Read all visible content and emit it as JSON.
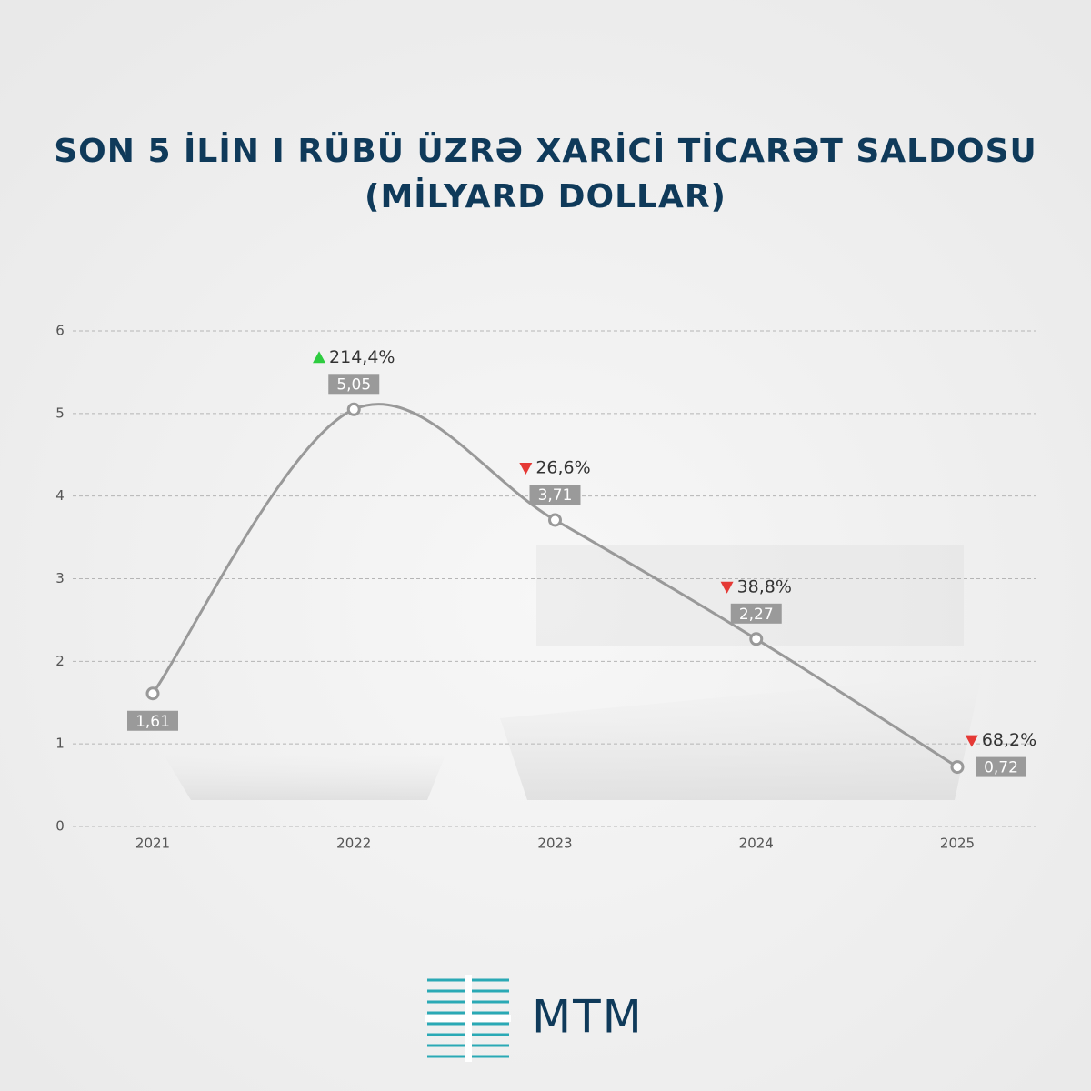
{
  "chart_data": {
    "type": "line",
    "title": [
      "SON 5 İLİN I RÜBÜ ÜZRƏ XARİCİ TİCARƏT SALDOSU",
      "(MİLYARD DOLLAR)"
    ],
    "categories": [
      "2021",
      "2022",
      "2023",
      "2024",
      "2025"
    ],
    "values": [
      1.61,
      5.05,
      3.71,
      2.27,
      0.72
    ],
    "value_labels": [
      "1,61",
      "5,05",
      "3,71",
      "2,27",
      "0,72"
    ],
    "change_labels": [
      null,
      "214,4%",
      "26,6%",
      "38,8%",
      "68,2%"
    ],
    "change_directions": [
      null,
      "up",
      "down",
      "down",
      "down"
    ],
    "color": "#999999",
    "ylim": [
      0,
      6
    ],
    "yticks": [
      0,
      1,
      2,
      3,
      4,
      5,
      6
    ],
    "grid": true,
    "logo": "MTM"
  }
}
